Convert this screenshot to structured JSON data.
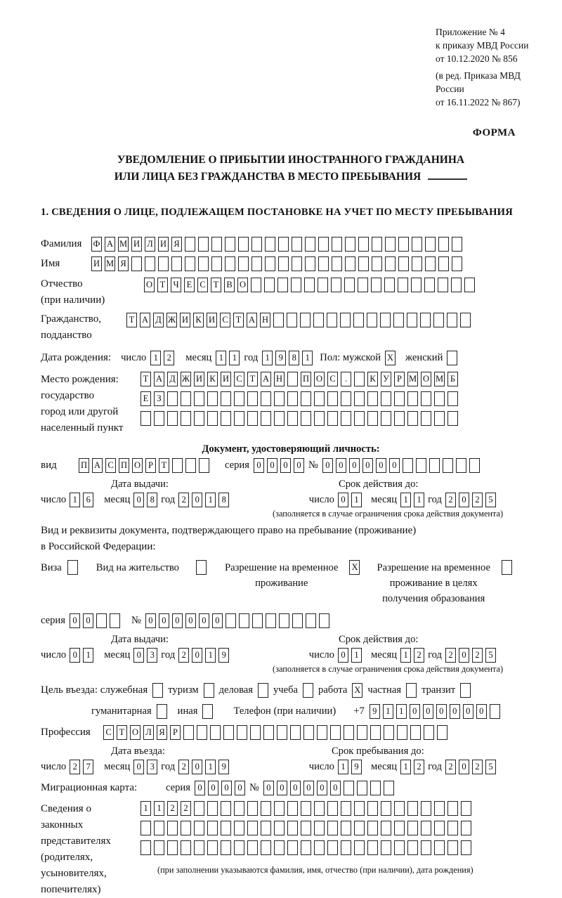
{
  "ref_block": {
    "line1": "Приложение № 4",
    "line2": "к приказу МВД России",
    "line3": "от 10.12.2020 № 856",
    "line4": "(в ред. Приказа МВД России",
    "line5": "от 16.11.2022 № 867)"
  },
  "form_word": "ФОРМА",
  "title": {
    "line1": "УВЕДОМЛЕНИЕ О ПРИБЫТИИ ИНОСТРАННОГО ГРАЖДАНИНА",
    "line2": "ИЛИ ЛИЦА БЕЗ ГРАЖДАНСТВА В МЕСТО ПРЕБЫВАНИЯ"
  },
  "section1_heading": "1. СВЕДЕНИЯ О ЛИЦЕ, ПОДЛЕЖАЩЕМ ПОСТАНОВКЕ НА УЧЕТ ПО МЕСТУ ПРЕБЫВАНИЯ",
  "labels": {
    "surname": "Фамилия",
    "name": "Имя",
    "patronymic_l1": "Отчество",
    "patronymic_l2": "(при наличии)",
    "citizenship_l1": "Гражданство,",
    "citizenship_l2": "подданство",
    "birth_date": "Дата рождения:",
    "day": "число",
    "month": "месяц",
    "year": "год",
    "sex_male": "Пол: мужской",
    "sex_female": "женский",
    "birthplace_l1": "Место рождения:",
    "birthplace_l2": "государство",
    "birthplace_l3": "город или другой",
    "birthplace_l4": "населенный пункт",
    "doc_header": "Документ, удостоверяющий личность:",
    "vid": "вид",
    "seriya": "серия",
    "num": "№",
    "issue_date_header": "Дата выдачи:",
    "expiry_header": "Срок действия до:",
    "note_limited": "(заполняется в случае ограничения срока действия документа)",
    "permit_line1": "Вид и реквизиты документа, подтверждающего право на пребывание (проживание)",
    "permit_line2": "в Российской Федерации:",
    "visa": "Виза",
    "residence": "Вид на жительство",
    "temp_permit_l1": "Разрешение на временное",
    "temp_permit_l2": "проживание",
    "edu_permit_l1": "Разрешение на временное",
    "edu_permit_l2": "проживание в целях",
    "edu_permit_l3": "получения образования",
    "purpose": "Цель въезда: служебная",
    "tourism": "туризм",
    "business": "деловая",
    "study": "учеба",
    "work": "работа",
    "private": "частная",
    "transit": "транзит",
    "humanitarian": "гуманитарная",
    "other": "иная",
    "phone": "Телефон (при наличии)",
    "phone_prefix": "+7",
    "profession": "Профессия",
    "entry_date_header": "Дата въезда:",
    "stay_header": "Срок пребывания до:",
    "migration_card": "Миграционная карта:",
    "legal_l1": "Сведения о",
    "legal_l2": "законных",
    "legal_l3": "представителях",
    "legal_l4": "(родителях,",
    "legal_l5": "усыновителях,",
    "legal_l6": "попечителях)",
    "legal_note": "(при заполнении указываются фамилия, имя, отчество (при наличии), дата рождения)"
  },
  "cells": {
    "surname": {
      "value": "ФАМИЛИЯ",
      "total": 28
    },
    "name": {
      "value": "ИМЯ",
      "total": 28
    },
    "patronymic": {
      "value": "ОТЧЕСТВО",
      "total": 25
    },
    "citizenship": {
      "value": "ТАДЖИКИСТАН",
      "total": 26
    },
    "birth_day": {
      "value": "12",
      "total": 2
    },
    "birth_month": {
      "value": "11",
      "total": 2
    },
    "birth_year": {
      "value": "1981",
      "total": 4
    },
    "sex_male_box": {
      "value": "X",
      "total": 1
    },
    "sex_female_box": {
      "value": "",
      "total": 1
    },
    "birthplace_r1": {
      "value": "ТАДЖИКИСТАН ПОС. КУРМОМБ",
      "total": 24
    },
    "birthplace_r2": {
      "value": "ЕЗ",
      "total": 24
    },
    "birthplace_r3": {
      "value": "",
      "total": 24
    },
    "doc_type": {
      "value": "ПАСПОРТ",
      "total": 10
    },
    "doc_series": {
      "value": "0000",
      "total": 4
    },
    "doc_number": {
      "value": "000000",
      "total": 12
    },
    "doc_issue_day": {
      "value": "16",
      "total": 2
    },
    "doc_issue_month": {
      "value": "08",
      "total": 2
    },
    "doc_issue_year": {
      "value": "2018",
      "total": 4
    },
    "doc_expiry_day": {
      "value": "01",
      "total": 2
    },
    "doc_expiry_month": {
      "value": "11",
      "total": 2
    },
    "doc_expiry_year": {
      "value": "2025",
      "total": 4
    },
    "visa_box": {
      "value": "",
      "total": 1
    },
    "residence_box": {
      "value": "",
      "total": 1
    },
    "temp_permit_box": {
      "value": "X",
      "total": 1
    },
    "edu_permit_box": {
      "value": "",
      "total": 1
    },
    "permit_series": {
      "value": "00",
      "total": 4
    },
    "permit_number": {
      "value": "000000",
      "total": 14
    },
    "permit_issue_day": {
      "value": "01",
      "total": 2
    },
    "permit_issue_month": {
      "value": "03",
      "total": 2
    },
    "permit_issue_year": {
      "value": "2019",
      "total": 4
    },
    "permit_expiry_day": {
      "value": "01",
      "total": 2
    },
    "permit_expiry_month": {
      "value": "12",
      "total": 2
    },
    "permit_expiry_year": {
      "value": "2025",
      "total": 4
    },
    "purpose_official_box": {
      "value": "",
      "total": 1
    },
    "purpose_tourism_box": {
      "value": "",
      "total": 1
    },
    "purpose_business_box": {
      "value": "",
      "total": 1
    },
    "purpose_study_box": {
      "value": "",
      "total": 1
    },
    "purpose_work_box": {
      "value": "X",
      "total": 1
    },
    "purpose_private_box": {
      "value": "",
      "total": 1
    },
    "purpose_transit_box": {
      "value": "",
      "total": 1
    },
    "purpose_humanitarian_box": {
      "value": "",
      "total": 1
    },
    "purpose_other_box": {
      "value": "",
      "total": 1
    },
    "phone": {
      "value": "911000000",
      "total": 10
    },
    "profession": {
      "value": "СТОЛЯР",
      "total": 26
    },
    "entry_day": {
      "value": "27",
      "total": 2
    },
    "entry_month": {
      "value": "03",
      "total": 2
    },
    "entry_year": {
      "value": "2019",
      "total": 4
    },
    "stay_day": {
      "value": "19",
      "total": 2
    },
    "stay_month": {
      "value": "12",
      "total": 2
    },
    "stay_year": {
      "value": "2025",
      "total": 4
    },
    "mig_series": {
      "value": "0000",
      "total": 4
    },
    "mig_number": {
      "value": "000000",
      "total": 10
    },
    "legal_r1": {
      "value": "1122",
      "total": 25
    },
    "legal_r2": {
      "value": "",
      "total": 25
    },
    "legal_r3": {
      "value": "",
      "total": 25
    }
  }
}
